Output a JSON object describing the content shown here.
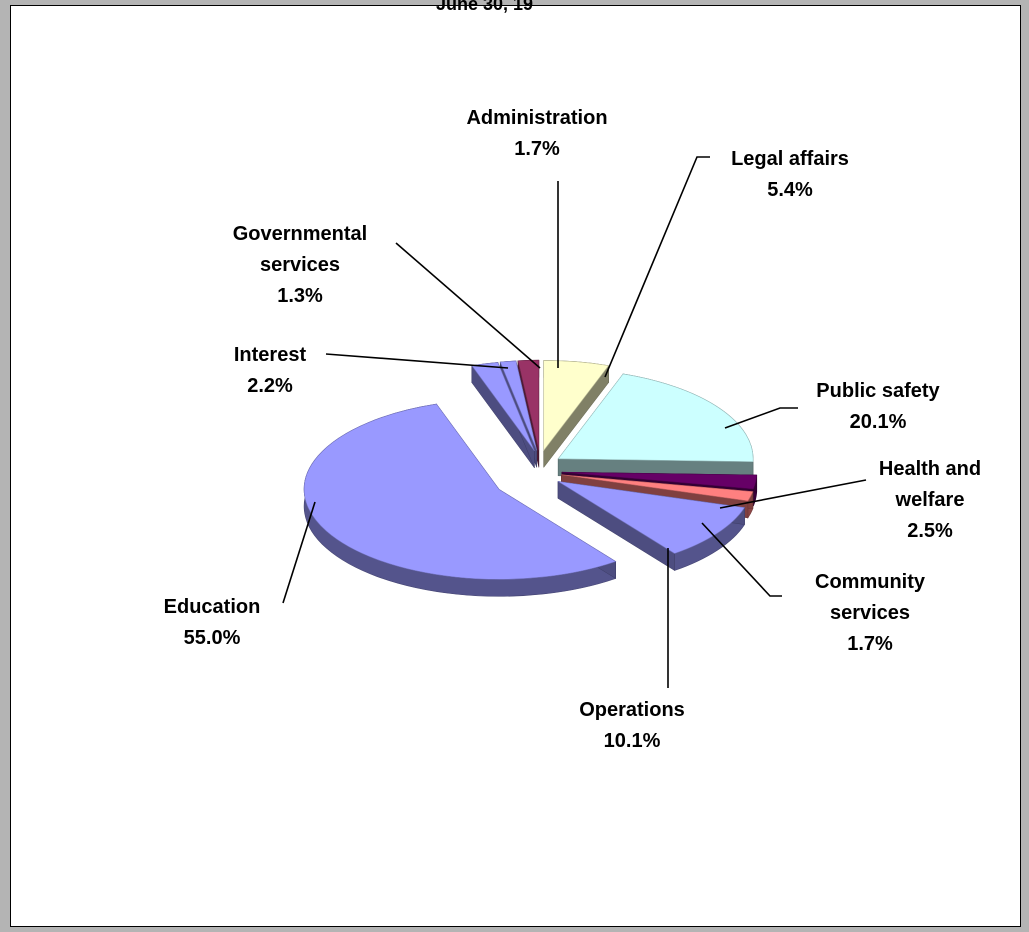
{
  "title_fragment": "June 30, 19",
  "chart_data": {
    "type": "pie",
    "title": "",
    "three_d": true,
    "exploded": true,
    "unit": "%",
    "slices": [
      {
        "name": "Legal affairs",
        "label_lines": [
          "Legal affairs"
        ],
        "value": 5.4,
        "value_label": "5.4%",
        "color": "#ffffcc"
      },
      {
        "name": "Public safety",
        "label_lines": [
          "Public safety"
        ],
        "value": 20.1,
        "value_label": "20.1%",
        "color": "#ccffff"
      },
      {
        "name": "Health and welfare",
        "label_lines": [
          "Health and",
          "welfare"
        ],
        "value": 2.5,
        "value_label": "2.5%",
        "color": "#660066"
      },
      {
        "name": "Community services",
        "label_lines": [
          "Community",
          "services"
        ],
        "value": 1.7,
        "value_label": "1.7%",
        "color": "#ff8080"
      },
      {
        "name": "Operations",
        "label_lines": [
          "Operations"
        ],
        "value": 10.1,
        "value_label": "10.1%",
        "color": "#9999ff"
      },
      {
        "name": "Education",
        "label_lines": [
          "Education"
        ],
        "value": 55.0,
        "value_label": "55.0%",
        "color": "#9999ff"
      },
      {
        "name": "Interest",
        "label_lines": [
          "Interest"
        ],
        "value": 2.2,
        "value_label": "2.2%",
        "color": "#9999ff"
      },
      {
        "name": "Governmental services",
        "label_lines": [
          "Governmental",
          "services"
        ],
        "value": 1.3,
        "value_label": "1.3%",
        "color": "#9999ff"
      },
      {
        "name": "Administration",
        "label_lines": [
          "Administration"
        ],
        "value": 1.7,
        "value_label": "1.7%",
        "color": "#993366"
      }
    ]
  }
}
